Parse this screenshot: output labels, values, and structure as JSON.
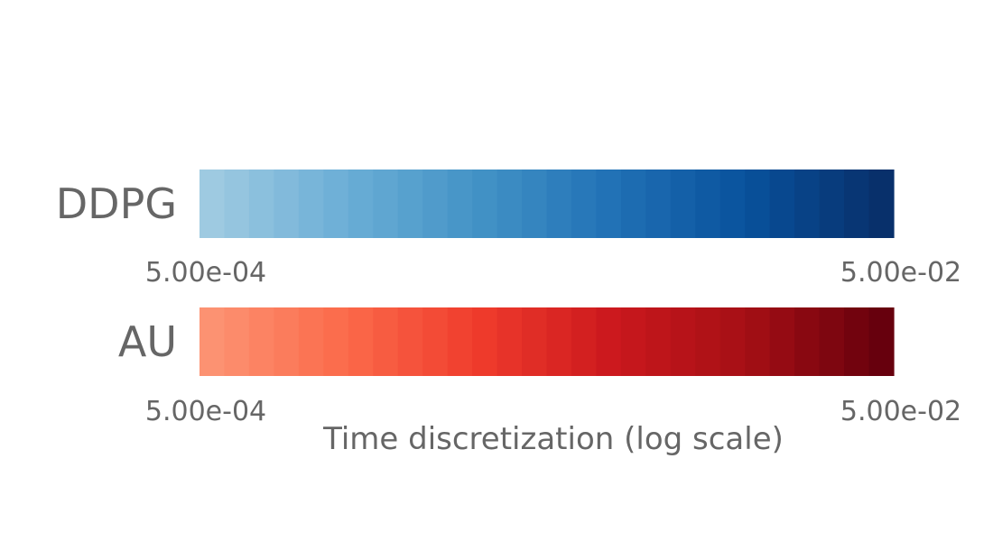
{
  "chart_data": {
    "type": "heatmap",
    "title": "",
    "xlabel": "Time discretization (log scale)",
    "x_scale": "log",
    "xlim": [
      0.0005,
      0.05
    ],
    "grid": false,
    "legend": "none",
    "bands": [
      {
        "name": "DDPG",
        "x_min_label": "5.00e-04",
        "x_max_label": "5.00e-02",
        "colormap": "Blues",
        "color_start": "#9ecae1",
        "color_end": "#08306b",
        "steps": 28
      },
      {
        "name": "AU",
        "x_min_label": "5.00e-04",
        "x_max_label": "5.00e-02",
        "colormap": "Reds",
        "color_start": "#fc9272",
        "color_end": "#67000d",
        "steps": 28
      }
    ]
  }
}
